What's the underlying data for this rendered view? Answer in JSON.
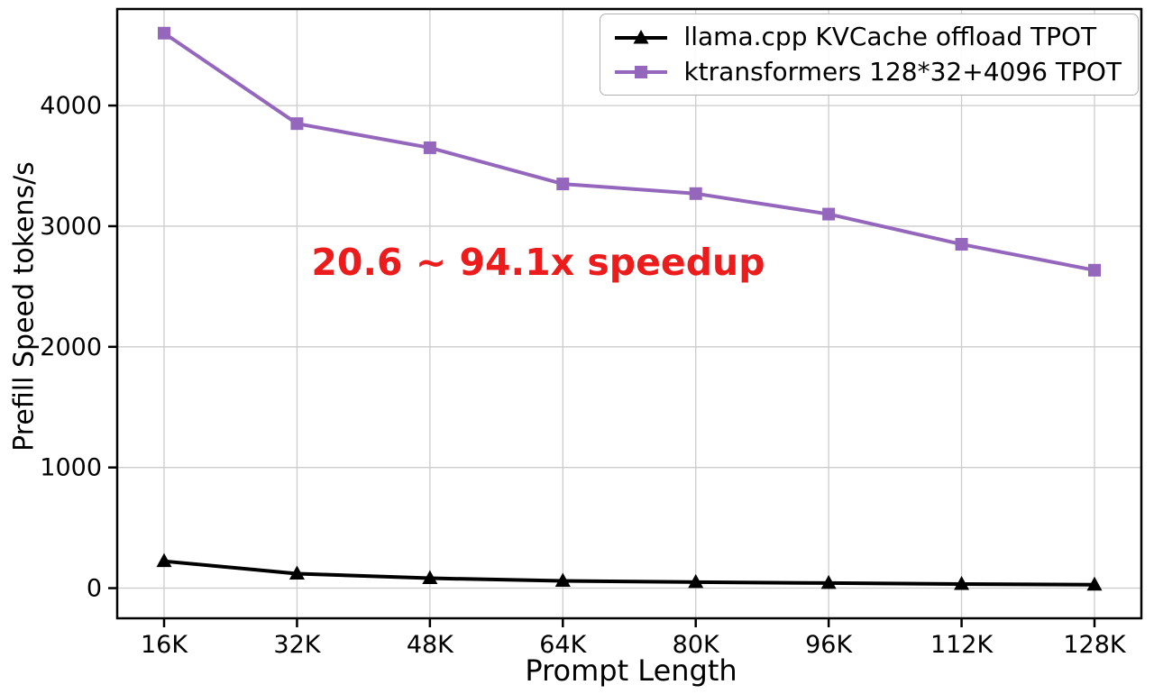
{
  "chart_data": {
    "type": "line",
    "title": "",
    "xlabel": "Prompt Length",
    "ylabel": "Prefill Speed tokens/s",
    "categories": [
      "16K",
      "32K",
      "48K",
      "64K",
      "80K",
      "96K",
      "112K",
      "128K"
    ],
    "series": [
      {
        "name": "llama.cpp KVCache offload TPOT",
        "color": "#000000",
        "marker": "triangle",
        "values": [
          223,
          120,
          82,
          60,
          50,
          42,
          34,
          28
        ]
      },
      {
        "name": "ktransformers 128*32+4096 TPOT",
        "color": "#9467bd",
        "marker": "square",
        "values": [
          4600,
          3850,
          3650,
          3350,
          3270,
          3100,
          2850,
          2635
        ]
      }
    ],
    "yticks": [
      0,
      1000,
      2000,
      3000,
      4000
    ],
    "ylim": [
      -250,
      4800
    ],
    "grid": true,
    "grid_color": "#cccccc",
    "legend_position": "top-right",
    "annotation": {
      "text": "20.6 ~ 94.1x speedup",
      "color": "#ed1c1c"
    }
  }
}
